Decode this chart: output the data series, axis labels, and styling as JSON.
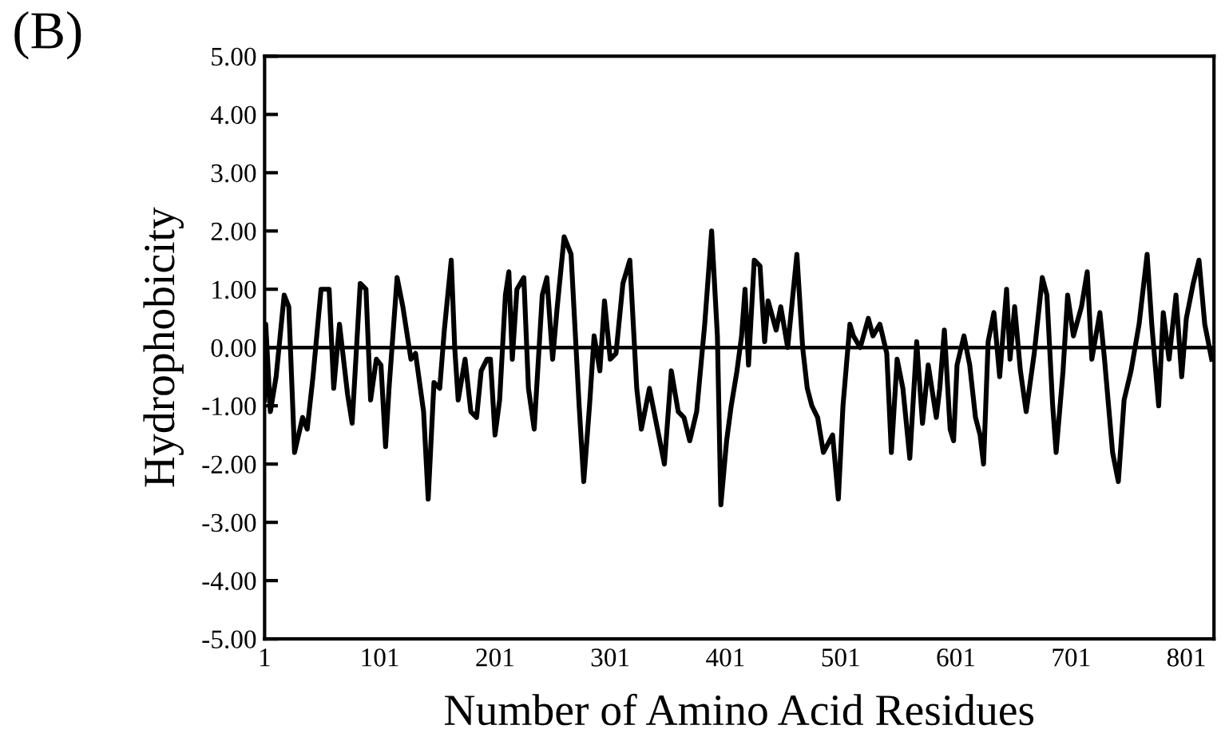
{
  "chart_data": {
    "type": "line",
    "title": "(B)",
    "xlabel": "Number of Amino Acid Residues",
    "ylabel": "Hydrophobicity",
    "x": [
      1,
      2,
      6,
      11,
      18,
      22,
      27,
      34,
      38,
      43,
      50,
      57,
      61,
      66,
      73,
      77,
      84,
      89,
      93,
      98,
      102,
      106,
      109,
      116,
      121,
      128,
      132,
      139,
      143,
      148,
      153,
      157,
      163,
      166,
      169,
      175,
      180,
      185,
      189,
      194,
      197,
      201,
      205,
      210,
      213,
      216,
      220,
      226,
      230,
      235,
      242,
      246,
      251,
      255,
      261,
      267,
      274,
      278,
      283,
      287,
      292,
      296,
      301,
      306,
      312,
      318,
      324,
      328,
      335,
      342,
      348,
      354,
      360,
      365,
      370,
      376,
      383,
      389,
      394,
      397,
      402,
      406,
      411,
      415,
      418,
      421,
      426,
      431,
      435,
      438,
      445,
      449,
      455,
      459,
      463,
      468,
      472,
      476,
      481,
      486,
      494,
      499,
      503,
      509,
      512,
      518,
      525,
      529,
      535,
      541,
      545,
      550,
      555,
      561,
      567,
      572,
      577,
      584,
      587,
      591,
      596,
      599,
      602,
      608,
      613,
      618,
      622,
      625,
      629,
      634,
      639,
      645,
      648,
      652,
      657,
      662,
      669,
      676,
      680,
      685,
      688,
      694,
      698,
      703,
      710,
      715,
      719,
      726,
      730,
      737,
      742,
      747,
      753,
      760,
      767,
      771,
      777,
      781,
      786,
      792,
      797,
      801,
      807,
      812,
      817,
      823
    ],
    "series": [
      {
        "color": "#000000",
        "values": [
          -0.9,
          0.4,
          -1.1,
          -0.5,
          0.9,
          0.7,
          -1.8,
          -1.2,
          -1.4,
          -0.5,
          1.0,
          1.0,
          -0.7,
          0.4,
          -0.8,
          -1.3,
          1.1,
          1.0,
          -0.9,
          -0.2,
          -0.3,
          -1.7,
          -0.7,
          1.2,
          0.7,
          -0.2,
          -0.1,
          -1.1,
          -2.6,
          -0.6,
          -0.7,
          0.3,
          1.5,
          0.0,
          -0.9,
          -0.2,
          -1.1,
          -1.2,
          -0.4,
          -0.2,
          -0.2,
          -1.5,
          -0.9,
          0.9,
          1.3,
          -0.2,
          1.0,
          1.2,
          -0.7,
          -1.4,
          0.9,
          1.2,
          -0.2,
          0.7,
          1.9,
          1.6,
          -1.0,
          -2.3,
          -1.0,
          0.2,
          -0.4,
          0.8,
          -0.2,
          -0.1,
          1.1,
          1.5,
          -0.7,
          -1.4,
          -0.7,
          -1.4,
          -2.0,
          -0.4,
          -1.1,
          -1.2,
          -1.6,
          -1.1,
          0.4,
          2.0,
          0.2,
          -2.7,
          -1.6,
          -1.0,
          -0.4,
          0.2,
          1.0,
          -0.3,
          1.5,
          1.4,
          0.1,
          0.8,
          0.3,
          0.7,
          0.0,
          0.8,
          1.6,
          0.0,
          -0.7,
          -1.0,
          -1.2,
          -1.8,
          -1.5,
          -2.6,
          -1.0,
          0.4,
          0.2,
          0.0,
          0.5,
          0.2,
          0.4,
          -0.1,
          -1.8,
          -0.2,
          -0.7,
          -1.9,
          0.1,
          -1.3,
          -0.3,
          -1.2,
          -0.7,
          0.3,
          -1.4,
          -1.6,
          -0.3,
          0.2,
          -0.3,
          -1.2,
          -1.5,
          -2.0,
          0.1,
          0.6,
          -0.5,
          1.0,
          -0.2,
          0.7,
          -0.4,
          -1.1,
          -0.1,
          1.2,
          0.9,
          -1.0,
          -1.8,
          -0.4,
          0.9,
          0.2,
          0.7,
          1.3,
          -0.2,
          0.6,
          -0.2,
          -1.8,
          -2.3,
          -0.9,
          -0.4,
          0.4,
          1.6,
          0.4,
          -1.0,
          0.6,
          -0.2,
          0.9,
          -0.5,
          0.5,
          1.1,
          1.5,
          0.4,
          -0.2
        ]
      }
    ],
    "xlim": [
      1,
      825
    ],
    "xticks": [
      1,
      101,
      201,
      301,
      401,
      501,
      601,
      701,
      801
    ],
    "ylim": [
      -5,
      5
    ],
    "yticks": [
      {
        "value": 5,
        "label": "5.00"
      },
      {
        "value": 4,
        "label": "4.00"
      },
      {
        "value": 3,
        "label": "3.00"
      },
      {
        "value": 2,
        "label": "2.00"
      },
      {
        "value": 1,
        "label": "1.00"
      },
      {
        "value": 0,
        "label": "0.00"
      },
      {
        "value": -1,
        "label": "-1.00"
      },
      {
        "value": -2,
        "label": "-2.00"
      },
      {
        "value": -3,
        "label": "-3.00"
      },
      {
        "value": -4,
        "label": "-4.00"
      },
      {
        "value": -5,
        "label": "-5.00"
      }
    ],
    "ref_lines": [
      {
        "axis": "y",
        "value": 0,
        "color": "#000000",
        "line_style": "solid"
      }
    ],
    "grid": false,
    "legend": false,
    "line_style": "solid",
    "marker": "none"
  }
}
